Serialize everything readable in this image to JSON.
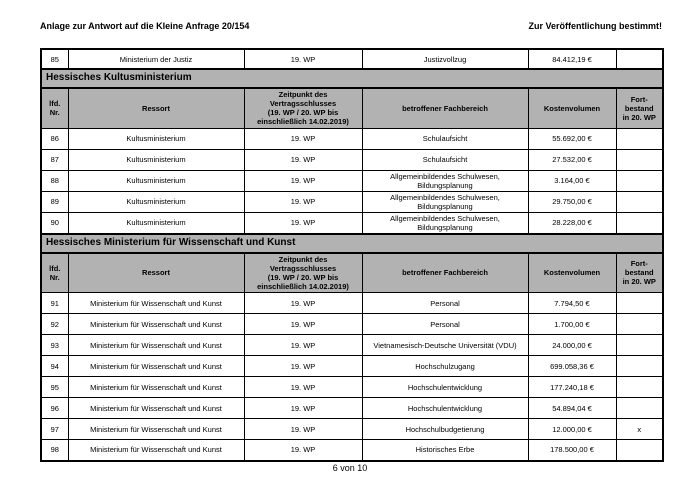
{
  "page": {
    "header_left": "Anlage zur Antwort auf die Kleine Anfrage 20/154",
    "header_right": "Zur Veröffentlichung bestimmt!",
    "footer": "6 von 10"
  },
  "colors": {
    "section_band_bg": "#b2b2b2",
    "header_row_bg": "#b2b2b2",
    "border": "#000000",
    "page_bg": "#ffffff"
  },
  "table": {
    "columns": [
      "lfd.\nNr.",
      "Ressort",
      "Zeitpunkt des\nVertragsschlusses\n(19. WP / 20. WP bis\neinschließlich 14.02.2019)",
      "betroffener Fachbereich",
      "Kostenvolumen",
      "Fort-\nbestand\nin 20. WP"
    ],
    "column_keys": [
      "lfd-nr",
      "ressort",
      "zeitpunkt-vertragsschluss",
      "fachbereich",
      "kostenvolumen",
      "fortbestand"
    ],
    "groups": [
      {
        "title": null,
        "show_header": false,
        "rows": [
          [
            "85",
            "Ministerium der Justiz",
            "19. WP",
            "Justizvollzug",
            "84.412,19 €",
            ""
          ]
        ]
      },
      {
        "title": "Hessisches Kultusministerium",
        "show_header": true,
        "rows": [
          [
            "86",
            "Kultusministerium",
            "19. WP",
            "Schulaufsicht",
            "55.692,00 €",
            ""
          ],
          [
            "87",
            "Kultusministerium",
            "19. WP",
            "Schulaufsicht",
            "27.532,00 €",
            ""
          ],
          [
            "88",
            "Kultusministerium",
            "19. WP",
            "Allgemeinbildendes Schulwesen,\nBildungsplanung",
            "3.164,00 €",
            ""
          ],
          [
            "89",
            "Kultusministerium",
            "19. WP",
            "Allgemeinbildendes Schulwesen,\nBildungsplanung",
            "29.750,00 €",
            ""
          ],
          [
            "90",
            "Kultusministerium",
            "19. WP",
            "Allgemeinbildendes Schulwesen,\nBildungsplanung",
            "28.228,00 €",
            ""
          ]
        ]
      },
      {
        "title": "Hessisches Ministerium für Wissenschaft und Kunst",
        "show_header": true,
        "rows": [
          [
            "91",
            "Ministerium für Wissenschaft und Kunst",
            "19. WP",
            "Personal",
            "7.794,50 €",
            ""
          ],
          [
            "92",
            "Ministerium für Wissenschaft und Kunst",
            "19. WP",
            "Personal",
            "1.700,00 €",
            ""
          ],
          [
            "93",
            "Ministerium für Wissenschaft und Kunst",
            "19. WP",
            "Vietnamesisch-Deutsche Universität (VDU)",
            "24.000,00 €",
            ""
          ],
          [
            "94",
            "Ministerium für Wissenschaft und Kunst",
            "19. WP",
            "Hochschulzugang",
            "699.058,36 €",
            ""
          ],
          [
            "95",
            "Ministerium für Wissenschaft und Kunst",
            "19. WP",
            "Hochschulentwicklung",
            "177.240,18 €",
            ""
          ],
          [
            "96",
            "Ministerium für Wissenschaft und Kunst",
            "19. WP",
            "Hochschulentwicklung",
            "54.894,04 €",
            ""
          ],
          [
            "97",
            "Ministerium für Wissenschaft und Kunst",
            "19. WP",
            "Hochschulbudgetierung",
            "12.000,00 €",
            "x"
          ],
          [
            "98",
            "Ministerium für Wissenschaft und Kunst",
            "19. WP",
            "Historisches Erbe",
            "178.500,00 €",
            ""
          ]
        ]
      }
    ]
  }
}
